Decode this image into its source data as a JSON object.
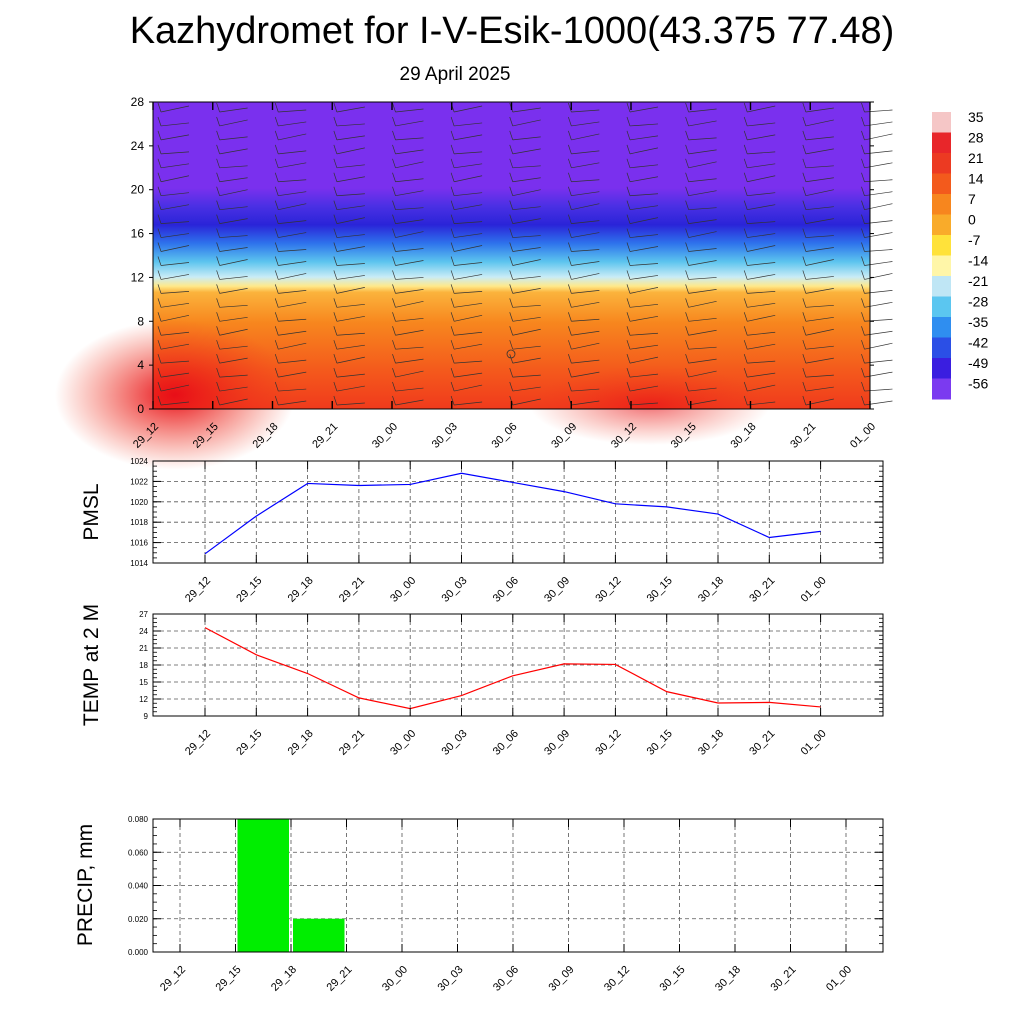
{
  "header": {
    "title": "Kazhydromet for I-V-Esik-1000(43.375 77.48)",
    "date": "29 April 2025"
  },
  "time_labels": [
    "29_12",
    "29_15",
    "29_18",
    "29_21",
    "30_00",
    "30_03",
    "30_06",
    "30_09",
    "30_12",
    "30_15",
    "30_18",
    "30_21",
    "01_00"
  ],
  "chart_data": [
    {
      "type": "heatmap",
      "y_ticks": [
        0,
        4,
        8,
        12,
        16,
        20,
        24,
        28
      ],
      "ylim": [
        0,
        28
      ],
      "colorbar": {
        "labels": [
          "35",
          "28",
          "21",
          "14",
          "7",
          "0",
          "-7",
          "-14",
          "-21",
          "-28",
          "-35",
          "-42",
          "-49",
          "-56"
        ],
        "colors": [
          "#f5c6c6",
          "#e8262a",
          "#ec3a22",
          "#f35a1c",
          "#f7861e",
          "#f9ab2a",
          "#ffe23a",
          "#fff6a8",
          "#bfe6f5",
          "#5bc6f0",
          "#2f8ef0",
          "#2b4fe6",
          "#3a1ee0",
          "#7b3af0"
        ]
      }
    },
    {
      "type": "line",
      "ylabel": "PMSL",
      "ylim": [
        1014,
        1024
      ],
      "y_ticks": [
        1014,
        1016,
        1018,
        1020,
        1022,
        1024
      ],
      "series": [
        {
          "values": [
            1014.9,
            1018.6,
            1021.8,
            1021.6,
            1021.7,
            1022.8,
            1021.9,
            1021.0,
            1019.8,
            1019.5,
            1018.8,
            1016.5,
            1017.1
          ],
          "color": "#0000ff"
        }
      ]
    },
    {
      "type": "line",
      "ylabel": "TEMP at 2 M",
      "ylim": [
        9,
        27
      ],
      "y_ticks": [
        9,
        12,
        15,
        18,
        21,
        24,
        27
      ],
      "series": [
        {
          "values": [
            24.6,
            19.8,
            16.5,
            12.2,
            10.3,
            12.6,
            16.1,
            18.2,
            18.1,
            13.3,
            11.3,
            11.4,
            10.6
          ],
          "color": "#ff0000"
        }
      ]
    },
    {
      "type": "bar",
      "ylabel": "PRECIP, mm",
      "ylim": [
        0,
        0.08
      ],
      "y_ticks": [
        "0.000",
        "0.020",
        "0.040",
        "0.060",
        "0.080"
      ],
      "categories": [
        "29_12",
        "29_15",
        "29_18",
        "29_21",
        "30_00",
        "30_03",
        "30_06",
        "30_09",
        "30_12",
        "30_15",
        "30_18",
        "30_21",
        "01_00"
      ],
      "values": [
        0,
        0.08,
        0.02,
        0,
        0,
        0,
        0,
        0,
        0,
        0,
        0,
        0,
        0
      ],
      "color": "#00ee00"
    }
  ]
}
